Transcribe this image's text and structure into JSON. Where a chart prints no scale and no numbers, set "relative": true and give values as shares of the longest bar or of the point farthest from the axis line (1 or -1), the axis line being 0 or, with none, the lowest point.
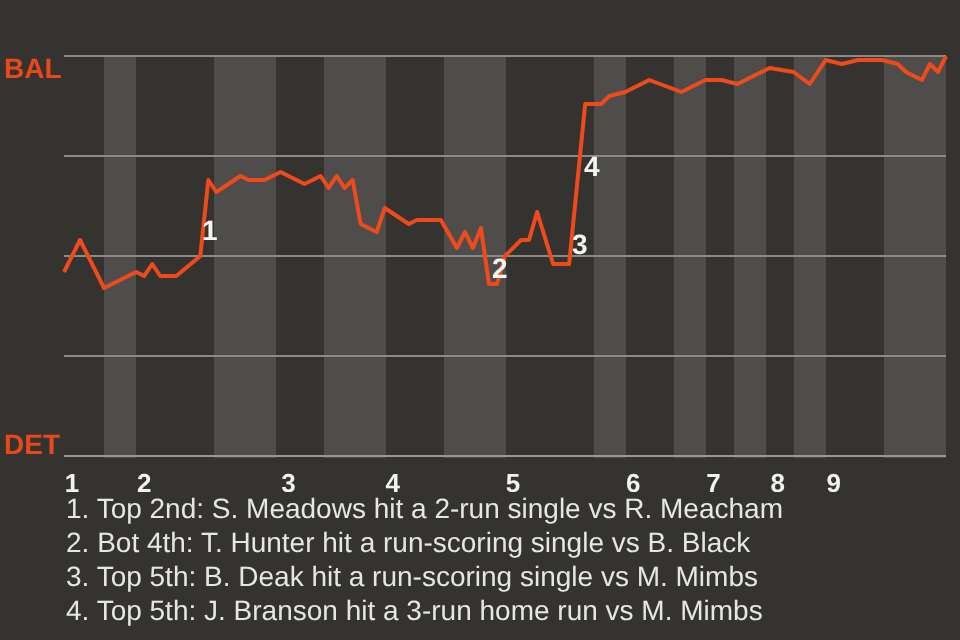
{
  "chart_data": {
    "type": "line",
    "relative": true,
    "categories": [
      null,
      "1",
      null,
      null,
      null,
      null,
      null,
      null,
      null,
      null,
      "2",
      null,
      null,
      null,
      null,
      null,
      null,
      null,
      null,
      null,
      null,
      null,
      null,
      null,
      null,
      null,
      null,
      null,
      "3",
      null,
      null,
      null,
      null,
      null,
      null,
      null,
      null,
      null,
      null,
      null,
      null,
      "4",
      null,
      null,
      null,
      null,
      null,
      null,
      null,
      null,
      null,
      null,
      null,
      null,
      null,
      null,
      "5",
      null,
      null,
      null,
      null,
      null,
      null,
      null,
      null,
      null,
      null,
      null,
      null,
      null,
      null,
      "6",
      null,
      null,
      null,
      null,
      null,
      null,
      null,
      null,
      null,
      "7",
      null,
      null,
      null,
      null,
      null,
      null,
      null,
      "8",
      null,
      null,
      null,
      null,
      null,
      null,
      "9",
      null,
      null,
      null,
      null,
      null,
      null,
      null,
      null,
      null,
      null,
      null,
      null,
      null,
      null
    ],
    "series": [
      {
        "color": "#ee4a1c",
        "values": [
          0.46,
          null,
          0.54,
          null,
          null,
          0.42,
          null,
          0.44,
          null,
          0.46,
          0.45,
          0.48,
          0.45,
          null,
          0.45,
          null,
          null,
          0.5,
          0.69,
          0.66,
          null,
          null,
          0.7,
          0.69,
          null,
          0.69,
          null,
          0.71,
          null,
          0.69,
          0.68,
          null,
          0.7,
          0.67,
          0.7,
          0.67,
          0.69,
          0.58,
          null,
          0.56,
          0.62,
          null,
          null,
          0.58,
          0.59,
          null,
          null,
          0.59,
          null,
          0.52,
          0.56,
          0.52,
          0.57,
          0.43,
          0.43,
          0.5,
          null,
          0.54,
          0.54,
          0.61,
          null,
          0.48,
          null,
          0.48,
          null,
          0.88,
          null,
          0.88,
          0.9,
          null,
          0.91,
          null,
          null,
          0.94,
          null,
          null,
          null,
          0.91,
          null,
          null,
          0.94,
          null,
          0.94,
          null,
          0.93,
          null,
          null,
          null,
          0.97,
          null,
          null,
          0.96,
          null,
          0.93,
          null,
          0.99,
          null,
          0.98,
          null,
          0.99,
          null,
          null,
          0.99,
          null,
          0.98,
          0.96,
          null,
          0.94,
          0.98,
          0.96,
          1
        ]
      }
    ],
    "grid": "y",
    "annotations": [
      "BAL",
      "DET",
      "1",
      "2",
      "3",
      "4",
      "1. Top 2nd: S. Meadows hit a 2-run single vs R. Meacham",
      "2. Bot 4th: T. Hunter hit a run-scoring single vs B. Black",
      "3. Top 5th: B. Deak hit a run-scoring single vs M. Mimbs",
      "4. Top 5th: J. Branson hit a 3-run home run vs M. Mimbs"
    ]
  }
}
